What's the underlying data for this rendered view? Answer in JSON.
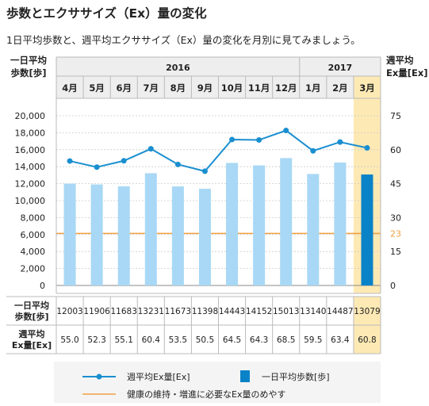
{
  "page": {
    "title": "歩数とエクササイズ（Ex）量の変化",
    "subtitle": "1日平均歩数と、週平均エクササイズ（Ex）量の変化を月別に見てみましょう。"
  },
  "colors": {
    "bar": "#a8d8f5",
    "bar_highlight": "#0a82c8",
    "line": "#1a8fd0",
    "reference": "#f0a040",
    "highlight_bg": "#fde9b4",
    "header_bg": "#eeeeee",
    "border": "#bbbbbb"
  },
  "chart_data": {
    "type": "bar",
    "left_axis_label": [
      "一日平均",
      "歩数[歩]"
    ],
    "right_axis_label": [
      "週平均",
      "Ex量[Ex]"
    ],
    "years": [
      {
        "label": "2016",
        "span": 9
      },
      {
        "label": "2017",
        "span": 3
      }
    ],
    "categories": [
      "4月",
      "5月",
      "6月",
      "7月",
      "8月",
      "9月",
      "10月",
      "11月",
      "12月",
      "1月",
      "2月",
      "3月"
    ],
    "highlight_index": 11,
    "y_left": {
      "min": 0,
      "max": 20000,
      "ticks": [
        "0",
        "2,000",
        "4,000",
        "6,000",
        "8,000",
        "10,000",
        "12,000",
        "14,000",
        "16,000",
        "18,000",
        "20,000"
      ]
    },
    "y_right": {
      "min": 0,
      "max": 75,
      "ticks": [
        "0",
        "15",
        "30",
        "45",
        "60",
        "75"
      ]
    },
    "reference_value": 23,
    "reference_label": "23",
    "steps": {
      "row_label": [
        "一日平均",
        "歩数[歩]"
      ],
      "values": [
        12003,
        11906,
        11683,
        13231,
        11673,
        11398,
        14443,
        14152,
        15013,
        13140,
        14487,
        13079
      ],
      "display": [
        "12003",
        "11906",
        "11683",
        "13231",
        "11673",
        "11398",
        "14443",
        "14152",
        "15013",
        "13140",
        "14487",
        "13079"
      ]
    },
    "ex": {
      "row_label": [
        "週平均",
        "Ex量[Ex]"
      ],
      "values": [
        55.0,
        52.3,
        55.1,
        60.4,
        53.5,
        50.5,
        64.5,
        64.3,
        68.5,
        59.5,
        63.4,
        60.8
      ],
      "display": [
        "55.0",
        "52.3",
        "55.1",
        "60.4",
        "53.5",
        "50.5",
        "64.5",
        "64.3",
        "68.5",
        "59.5",
        "63.4",
        "60.8"
      ]
    },
    "grid": true,
    "legend": {
      "placement": "bottom",
      "line_label": "週平均Ex量[Ex]",
      "bar_label": "一日平均歩数[歩]",
      "reference_label": "健康の維持・増進に必要なEx量のめやす"
    }
  }
}
